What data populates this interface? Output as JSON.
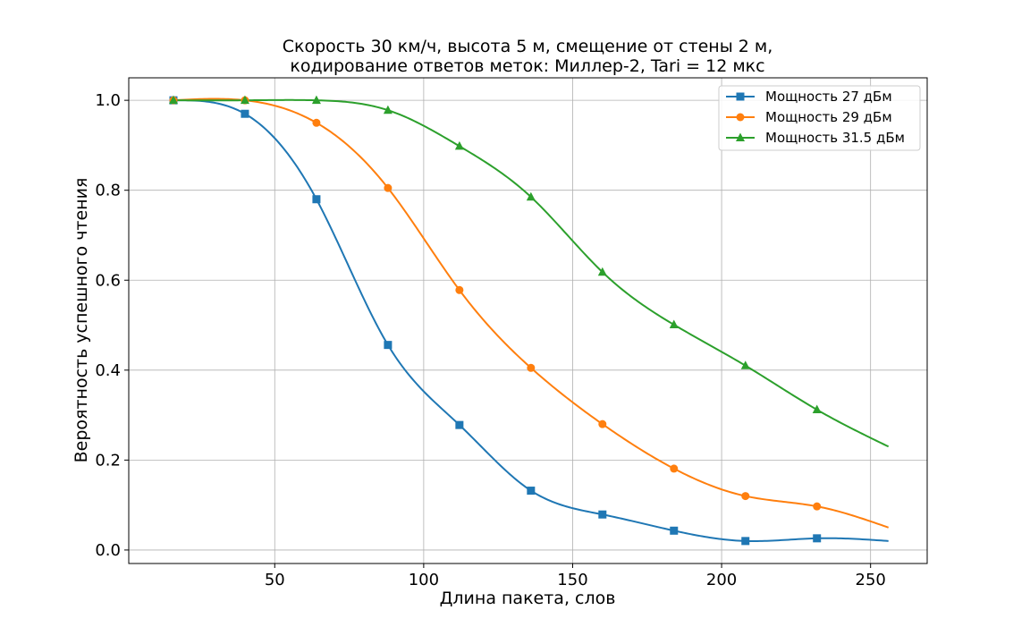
{
  "chart_data": {
    "type": "line",
    "title_line1": "Скорость 30 км/ч, высота 5 м, смещение от стены 2 м,",
    "title_line2": "кодирование ответов меток: Миллер-2, Tari = 12 мкс",
    "xlabel": "Длина пакета, слов",
    "ylabel": "Вероятность успешного чтения",
    "xlim": [
      1,
      269
    ],
    "ylim": [
      -0.03,
      1.05
    ],
    "xticks": [
      50,
      100,
      150,
      200,
      250
    ],
    "yticks": [
      0.0,
      0.2,
      0.4,
      0.6,
      0.8,
      1.0
    ],
    "ytick_labels": [
      "0.0",
      "0.2",
      "0.4",
      "0.6",
      "0.8",
      "1.0"
    ],
    "grid": true,
    "legend_position": "top-right",
    "x": [
      16,
      40,
      64,
      88,
      112,
      136,
      160,
      184,
      208,
      232
    ],
    "curve_end_x": 256,
    "series": [
      {
        "name": "Мощность 27 дБм",
        "color": "#1f77b4",
        "marker": "square",
        "values": [
          1.0,
          0.97,
          0.78,
          0.456,
          0.278,
          0.132,
          0.079,
          0.043,
          0.02,
          0.026
        ],
        "curve_end_value": 0.02
      },
      {
        "name": "Мощность 29 дБм",
        "color": "#ff7f0e",
        "marker": "circle",
        "values": [
          1.0,
          1.0,
          0.95,
          0.805,
          0.578,
          0.405,
          0.28,
          0.181,
          0.12,
          0.097
        ],
        "curve_end_value": 0.05
      },
      {
        "name": "Мощность 31.5 дБм",
        "color": "#2ca02c",
        "marker": "triangle",
        "values": [
          1.0,
          1.0,
          1.0,
          0.978,
          0.898,
          0.785,
          0.618,
          0.501,
          0.41,
          0.312
        ],
        "curve_end_value": 0.23
      }
    ]
  }
}
